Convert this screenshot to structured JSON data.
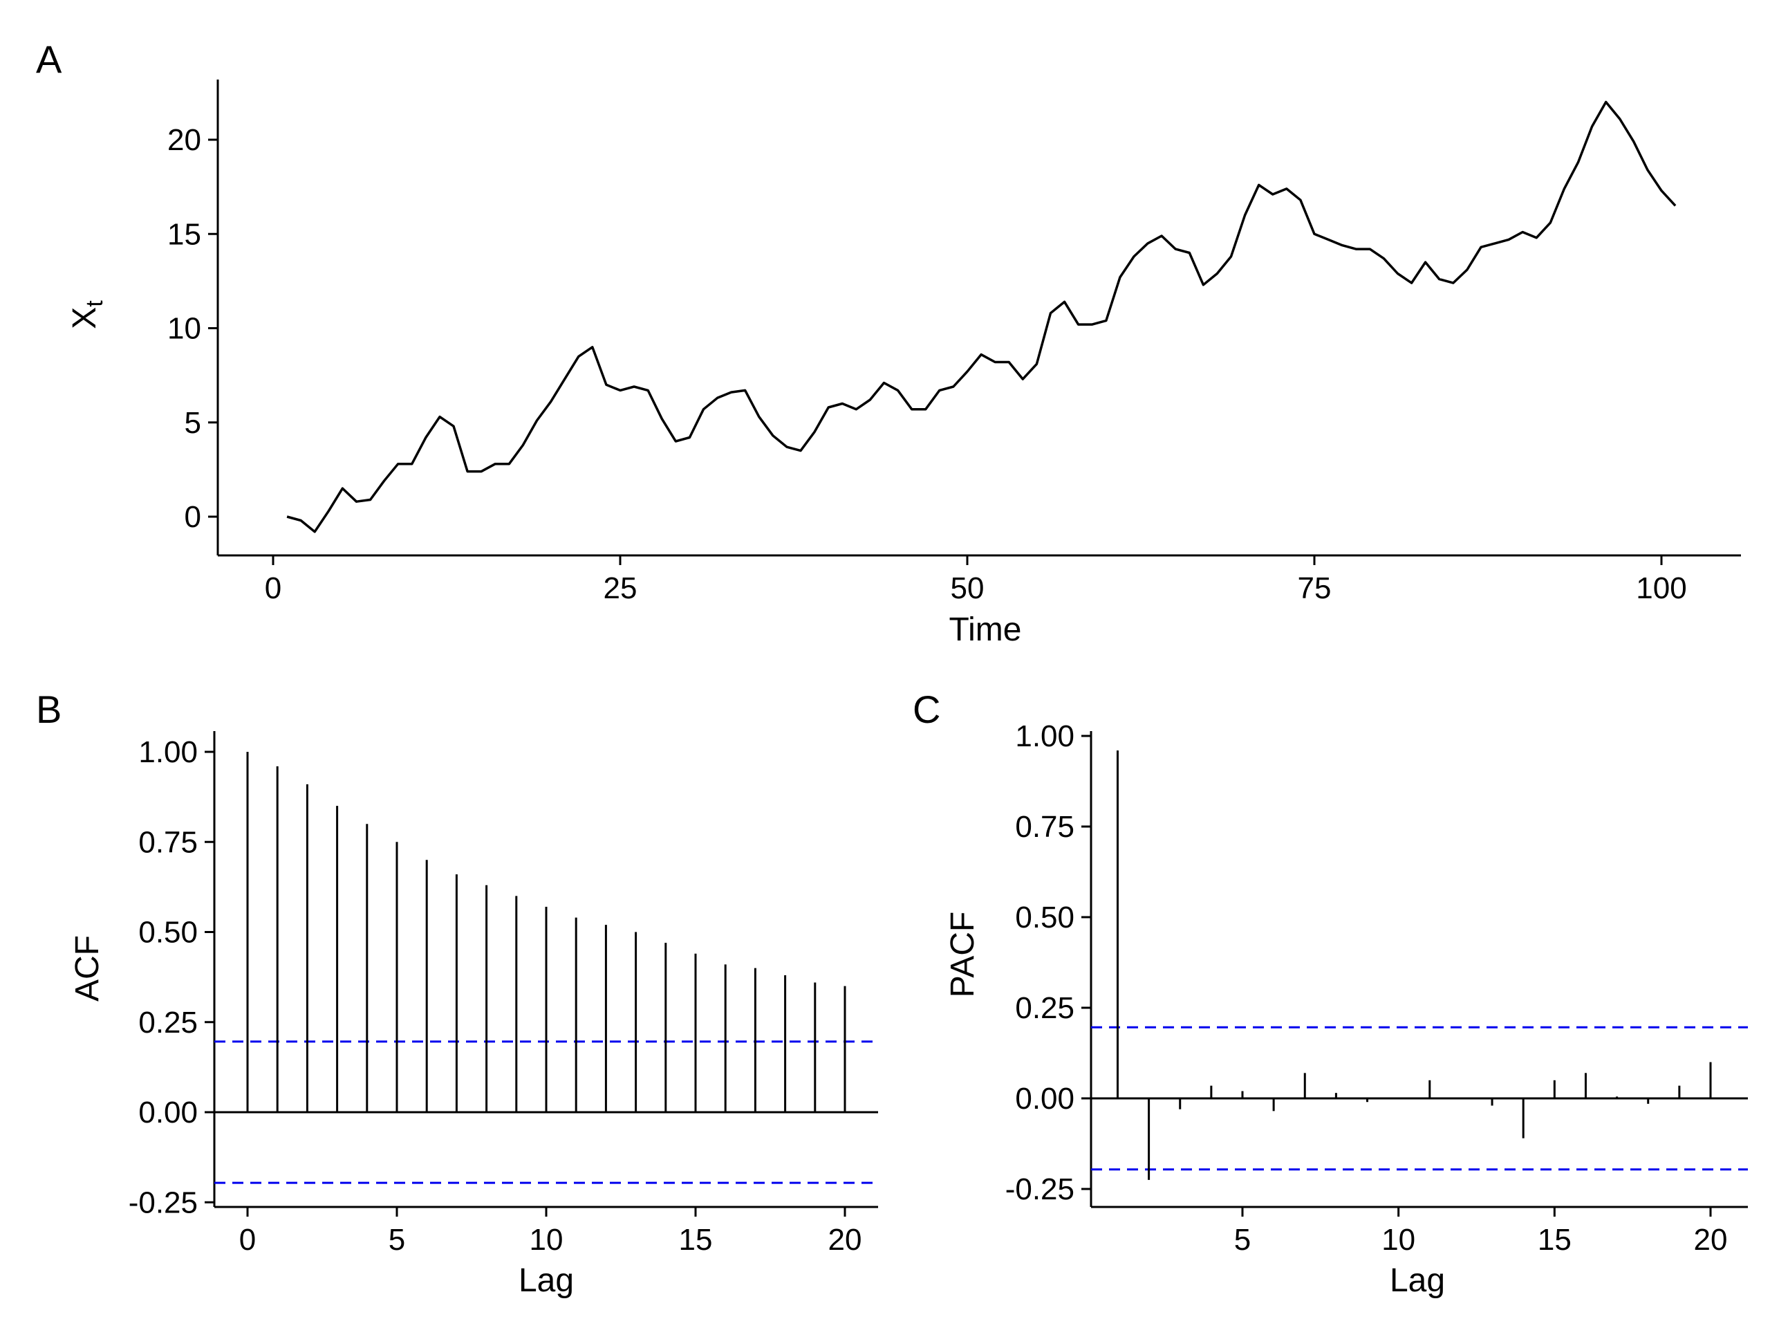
{
  "chart_data": [
    {
      "panel_label": "A",
      "type": "line",
      "xlabel": "Time",
      "ylabel": "X",
      "ylabel_subscript": "t",
      "xlim": [
        0,
        104
      ],
      "ylim": [
        -2,
        23
      ],
      "xticks": [
        0,
        25,
        50,
        75,
        100
      ],
      "yticks": [
        0,
        5,
        10,
        15,
        20
      ],
      "line_color": "#000000",
      "grid": false,
      "x": [
        1,
        2,
        3,
        4,
        5,
        6,
        7,
        8,
        9,
        10,
        11,
        12,
        13,
        14,
        15,
        16,
        17,
        18,
        19,
        20,
        21,
        22,
        23,
        24,
        25,
        26,
        27,
        28,
        29,
        30,
        31,
        32,
        33,
        34,
        35,
        36,
        37,
        38,
        39,
        40,
        41,
        42,
        43,
        44,
        45,
        46,
        47,
        48,
        49,
        50,
        51,
        52,
        53,
        54,
        55,
        56,
        57,
        58,
        59,
        60,
        61,
        62,
        63,
        64,
        65,
        66,
        67,
        68,
        69,
        70,
        71,
        72,
        73,
        74,
        75,
        76,
        77,
        78,
        79,
        80,
        81,
        82,
        83,
        84,
        85,
        86,
        87,
        88,
        89,
        90,
        91,
        92,
        93,
        94,
        95,
        96,
        97,
        98,
        99,
        100,
        101
      ],
      "y": [
        0.0,
        -0.2,
        -0.8,
        0.3,
        1.5,
        0.8,
        0.9,
        1.9,
        2.8,
        2.8,
        4.2,
        5.3,
        4.8,
        2.4,
        2.4,
        2.8,
        2.8,
        3.8,
        5.1,
        6.1,
        7.3,
        8.5,
        9.0,
        7.0,
        6.7,
        6.9,
        6.7,
        5.2,
        4.0,
        4.2,
        5.7,
        6.3,
        6.6,
        6.7,
        5.3,
        4.3,
        3.7,
        3.5,
        4.5,
        5.8,
        6.0,
        5.7,
        6.2,
        7.1,
        6.7,
        5.7,
        5.7,
        6.7,
        6.9,
        7.7,
        8.6,
        8.2,
        8.2,
        7.3,
        8.1,
        10.8,
        11.4,
        10.2,
        10.2,
        10.4,
        12.7,
        13.8,
        14.5,
        14.9,
        14.2,
        14.0,
        12.3,
        12.9,
        13.8,
        16.0,
        17.6,
        17.1,
        17.4,
        16.8,
        15.0,
        14.7,
        14.4,
        14.2,
        14.2,
        13.7,
        12.9,
        12.4,
        13.5,
        12.6,
        12.4,
        13.1,
        14.3,
        14.5,
        14.7,
        15.1,
        14.8,
        15.6,
        17.4,
        18.8,
        20.7,
        22.0,
        21.1,
        19.9,
        18.4,
        17.3,
        16.5
      ]
    },
    {
      "panel_label": "B",
      "type": "bar",
      "xlabel": "Lag",
      "ylabel": "ACF",
      "xlim": [
        -1.2,
        21
      ],
      "ylim": [
        -0.25,
        1.06
      ],
      "xticks": [
        0,
        5,
        10,
        15,
        20
      ],
      "yticks": [
        "1.00",
        "0.75",
        "0.50",
        "0.25",
        "0.00",
        "-0.25"
      ],
      "lags": [
        0,
        1,
        2,
        3,
        4,
        5,
        6,
        7,
        8,
        9,
        10,
        11,
        12,
        13,
        14,
        15,
        16,
        17,
        18,
        19,
        20
      ],
      "values": [
        1.0,
        0.96,
        0.91,
        0.85,
        0.8,
        0.75,
        0.7,
        0.66,
        0.63,
        0.6,
        0.57,
        0.54,
        0.52,
        0.5,
        0.47,
        0.44,
        0.41,
        0.4,
        0.38,
        0.36,
        0.35
      ],
      "conf_bounds": [
        0.196,
        -0.196
      ],
      "bound_color": "#0000ee",
      "bar_color": "#000000",
      "grid": false
    },
    {
      "panel_label": "C",
      "type": "bar",
      "xlabel": "Lag",
      "ylabel": "PACF",
      "xlim": [
        0,
        21
      ],
      "ylim": [
        -0.28,
        1.04
      ],
      "xticks": [
        5,
        10,
        15,
        20
      ],
      "yticks": [
        "1.00",
        "0.75",
        "0.50",
        "0.25",
        "0.00",
        "-0.25"
      ],
      "lags": [
        1,
        2,
        3,
        4,
        5,
        6,
        7,
        8,
        9,
        10,
        11,
        12,
        13,
        14,
        15,
        16,
        17,
        18,
        19,
        20
      ],
      "values": [
        0.96,
        -0.225,
        -0.03,
        0.035,
        0.02,
        -0.035,
        0.07,
        0.015,
        -0.01,
        0.0,
        0.05,
        0.0,
        -0.02,
        -0.11,
        0.05,
        0.07,
        0.005,
        -0.015,
        0.035,
        0.1
      ],
      "conf_bounds": [
        0.196,
        -0.196
      ],
      "bound_color": "#0000ee",
      "bar_color": "#000000",
      "grid": false
    }
  ]
}
